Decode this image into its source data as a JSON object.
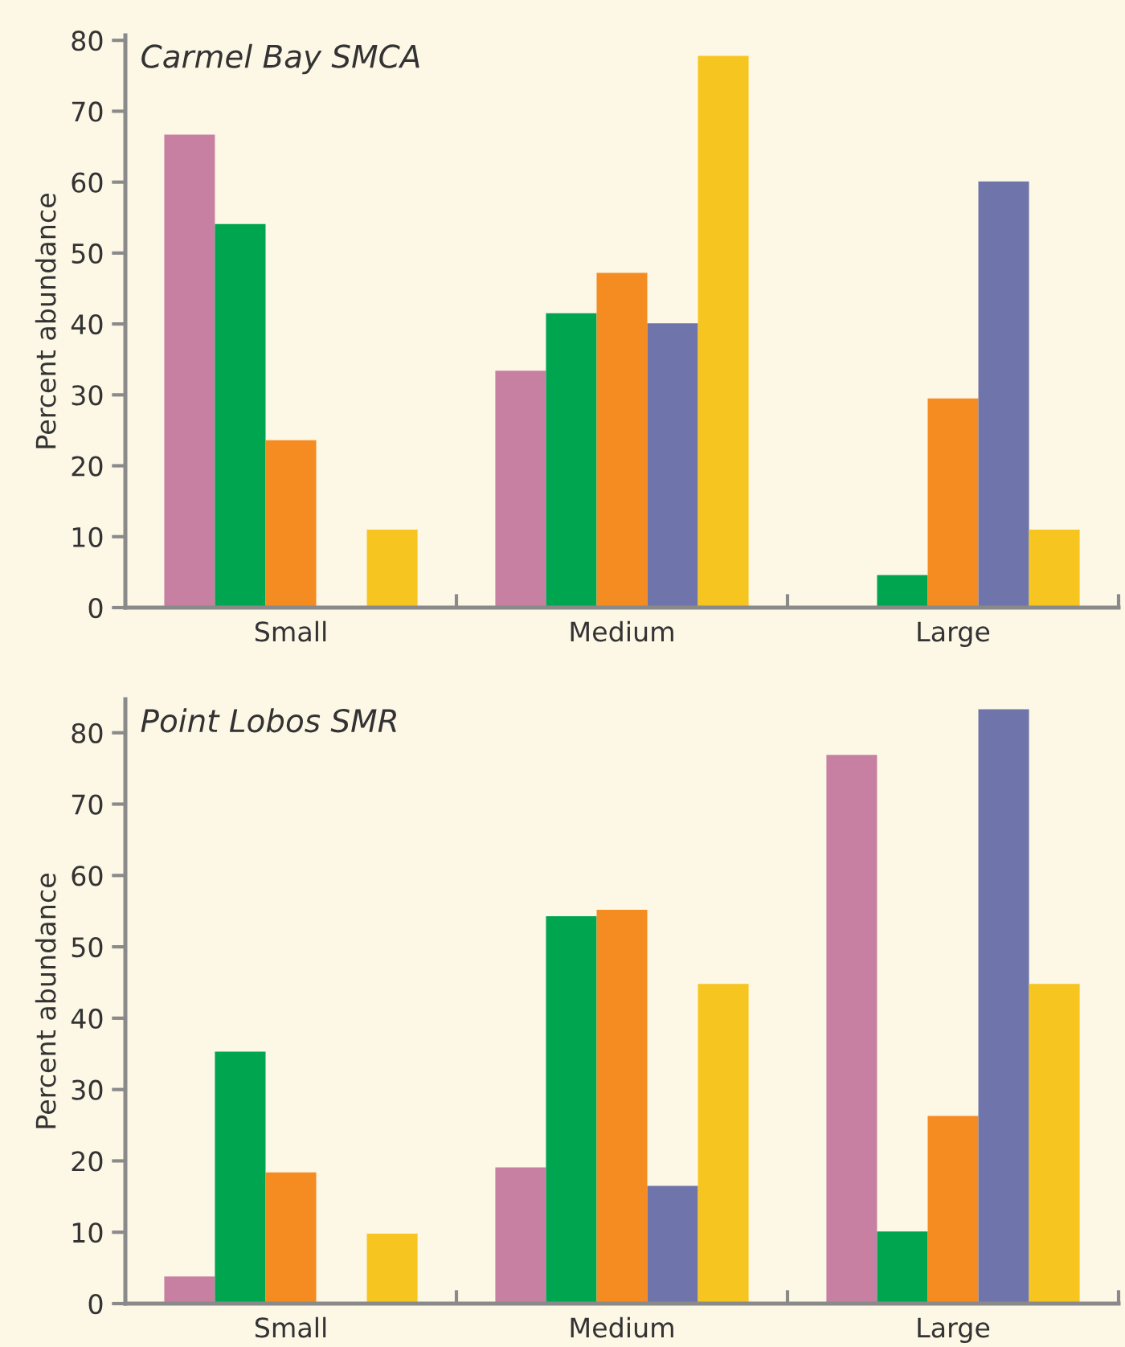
{
  "chart_data": [
    {
      "type": "bar",
      "title": "Carmel Bay SMCA",
      "ylabel": "Percent abundance",
      "categories": [
        "Small",
        "Medium",
        "Large"
      ],
      "ylim": [
        0,
        80.7
      ],
      "yticks": [
        0,
        10,
        20,
        30,
        40,
        50,
        60,
        70,
        80
      ],
      "grid": false,
      "legend": false,
      "series": [
        {
          "color": "#c880a2",
          "values": [
            66.7,
            33.4,
            0
          ]
        },
        {
          "color": "#00a550",
          "values": [
            54.1,
            41.5,
            4.6
          ]
        },
        {
          "color": "#f58c21",
          "values": [
            23.6,
            47.2,
            29.5
          ]
        },
        {
          "color": "#6f75aa",
          "values": [
            0,
            40.1,
            60.1
          ]
        },
        {
          "color": "#f7c51f",
          "values": [
            11.0,
            77.8,
            11.0
          ]
        }
      ]
    },
    {
      "type": "bar",
      "title": "Point Lobos SMR",
      "ylabel": "Percent abundance",
      "categories": [
        "Small",
        "Medium",
        "Large"
      ],
      "ylim": [
        0,
        84.7
      ],
      "yticks": [
        0,
        10,
        20,
        30,
        40,
        50,
        60,
        70,
        80
      ],
      "grid": false,
      "legend": false,
      "series": [
        {
          "color": "#c880a2",
          "values": [
            3.8,
            19.1,
            76.9
          ]
        },
        {
          "color": "#00a550",
          "values": [
            35.3,
            54.3,
            10.1
          ]
        },
        {
          "color": "#f58c21",
          "values": [
            18.4,
            55.2,
            26.3
          ]
        },
        {
          "color": "#6f75aa",
          "values": [
            0,
            16.5,
            83.3
          ]
        },
        {
          "color": "#f7c51f",
          "values": [
            9.8,
            44.8,
            44.8
          ]
        }
      ]
    }
  ]
}
